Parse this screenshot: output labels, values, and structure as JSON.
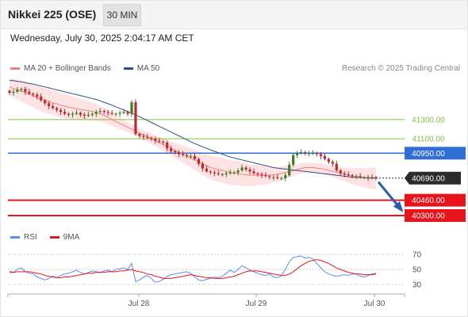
{
  "header": {
    "title": "Nikkei 225 (OSE)",
    "interval": "30 MIN",
    "datetime": "Wednesday, July 30, 2025 2:04:17 AM CET"
  },
  "legend": {
    "bollinger_label": "MA 20 + Bollinger Bands",
    "ma50_label": "MA 50",
    "rsi_label": "RSI",
    "rsi_ma_label": "9MA",
    "credit": "Research © 2025 Trading Central"
  },
  "colors": {
    "green_level": "#7fc241",
    "blue_level": "#2f6fd6",
    "red_level": "#e8141b",
    "current_price": "#2b2b2b",
    "band_fill": "#fcd9d9",
    "ma20": "#f08080",
    "ma50": "#2c4f86",
    "rsi": "#5b8def",
    "rsi_ma": "#e8141b",
    "candle_up": "#3d7d22",
    "candle_down": "#c0282e",
    "forecast_arrow": "#2b5ea8"
  },
  "chart_data": {
    "type": "candlestick",
    "x_ticks": [
      "Jul 28",
      "Jul 29",
      "Jul 30"
    ],
    "price_levels": [
      {
        "value": 41300.0,
        "label": "41300.00",
        "kind": "resistance"
      },
      {
        "value": 41100.0,
        "label": "41100.00",
        "kind": "resistance"
      },
      {
        "value": 40950.0,
        "label": "40950.00",
        "kind": "pivot"
      },
      {
        "value": 40690.0,
        "label": "40690.00",
        "kind": "last_price"
      },
      {
        "value": 40460.0,
        "label": "40460.00",
        "kind": "target"
      },
      {
        "value": 40300.0,
        "label": "40300.00",
        "kind": "target"
      }
    ],
    "close": [
      41580,
      41590,
      41610,
      41620,
      41590,
      41570,
      41560,
      41540,
      41500,
      41470,
      41440,
      41420,
      41400,
      41380,
      41360,
      41350,
      41360,
      41370,
      41350,
      41340,
      41350,
      41360,
      41380,
      41390,
      41380,
      41370,
      41360,
      41360,
      41370,
      41380,
      41360,
      41480,
      41150,
      41130,
      41120,
      41110,
      41100,
      41080,
      41070,
      41060,
      41000,
      40970,
      40960,
      40940,
      40930,
      40920,
      40920,
      40890,
      40840,
      40790,
      40760,
      40750,
      40740,
      40730,
      40730,
      40740,
      40750,
      40750,
      40770,
      40800,
      40780,
      40760,
      40740,
      40730,
      40720,
      40710,
      40700,
      40700,
      40690,
      40690,
      40720,
      40830,
      40930,
      40950,
      40960,
      40950,
      40950,
      40950,
      40940,
      40920,
      40890,
      40860,
      40840,
      40770,
      40740,
      40730,
      40720,
      40710,
      40710,
      40700,
      40700,
      40690,
      40700,
      40690
    ],
    "ma20": [
      41640,
      41625,
      41610,
      41595,
      41580,
      41565,
      41550,
      41530,
      41515,
      41500,
      41490,
      41475,
      41465,
      41450,
      41440,
      41430,
      41420,
      41415,
      41405,
      41400,
      41392,
      41385,
      41375,
      41360,
      41345,
      41325,
      41300,
      41280,
      41260,
      41240,
      41220,
      41200,
      41180,
      41160,
      41140,
      41120,
      41100,
      41080,
      41060,
      41040,
      41020,
      41000,
      40980,
      40960,
      40940,
      40920,
      40900,
      40880,
      40860,
      40840,
      40820,
      40800,
      40790,
      40780,
      40770,
      40760,
      40750,
      40745,
      40740,
      40730,
      40725,
      40720,
      40720,
      40720,
      40720,
      40720,
      40720,
      40725,
      40730,
      40740,
      40750,
      40760,
      40770,
      40780,
      40790,
      40800,
      40800,
      40800,
      40795,
      40790,
      40780,
      40770,
      40760,
      40750,
      40740,
      40730,
      40720,
      40712,
      40705,
      40700,
      40695,
      40692,
      40690,
      40690
    ],
    "ma50": [
      41710,
      41705,
      41700,
      41693,
      41685,
      41677,
      41670,
      41660,
      41650,
      41640,
      41630,
      41620,
      41610,
      41600,
      41590,
      41580,
      41570,
      41560,
      41550,
      41540,
      41530,
      41520,
      41510,
      41495,
      41480,
      41465,
      41450,
      41433,
      41417,
      41400,
      41383,
      41367,
      41350,
      41330,
      41310,
      41290,
      41270,
      41250,
      41230,
      41210,
      41190,
      41170,
      41150,
      41130,
      41110,
      41090,
      41070,
      41050,
      41033,
      41017,
      41000,
      40985,
      40970,
      40955,
      40940,
      40925,
      40910,
      40900,
      40890,
      40880,
      40870,
      40860,
      40850,
      40840,
      40830,
      40820,
      40810,
      40800,
      40795,
      40790,
      40785,
      40780,
      40775,
      40770,
      40765,
      40760,
      40755,
      40750,
      40745,
      40740,
      40735,
      40730,
      40725,
      40720,
      40715,
      40710,
      40705,
      40700,
      40698,
      40696,
      40694,
      40692,
      40690,
      40690
    ],
    "rsi": [
      48,
      46,
      50,
      52,
      47,
      45,
      44,
      40,
      38,
      36,
      38,
      41,
      39,
      42,
      44,
      45,
      47,
      49,
      46,
      44,
      46,
      48,
      47,
      46,
      48,
      49,
      47,
      50,
      51,
      52,
      50,
      58,
      34,
      36,
      40,
      42,
      38,
      33,
      34,
      37,
      41,
      43,
      44,
      45,
      46,
      47,
      45,
      40,
      36,
      35,
      37,
      38,
      40,
      39,
      41,
      45,
      49,
      46,
      50,
      55,
      52,
      49,
      47,
      45,
      43,
      42,
      44,
      40,
      39,
      42,
      50,
      60,
      66,
      67,
      68,
      65,
      66,
      64,
      58,
      52,
      47,
      44,
      42,
      41,
      42,
      43,
      42,
      44,
      44,
      41,
      40,
      42,
      44,
      45
    ],
    "rsi_ma": [
      46,
      46,
      47,
      47,
      47,
      47,
      46,
      45,
      44,
      42,
      41,
      40,
      39,
      39,
      40,
      40,
      41,
      42,
      43,
      44,
      45,
      45,
      46,
      46,
      46,
      47,
      47,
      47,
      48,
      48,
      49,
      50,
      48,
      47,
      46,
      44,
      43,
      41,
      40,
      38,
      38,
      38,
      39,
      40,
      41,
      42,
      43,
      42,
      41,
      40,
      39,
      39,
      38,
      38,
      38,
      39,
      40,
      41,
      43,
      45,
      47,
      48,
      48,
      48,
      47,
      46,
      45,
      44,
      43,
      42,
      42,
      44,
      47,
      51,
      55,
      58,
      61,
      62,
      63,
      62,
      60,
      58,
      55,
      52,
      50,
      48,
      46,
      45,
      44,
      44,
      43,
      43,
      43,
      44
    ],
    "rsi_levels": [
      70,
      50,
      30
    ],
    "rsi_tick_labels": [
      "70",
      "50",
      "30"
    ]
  }
}
